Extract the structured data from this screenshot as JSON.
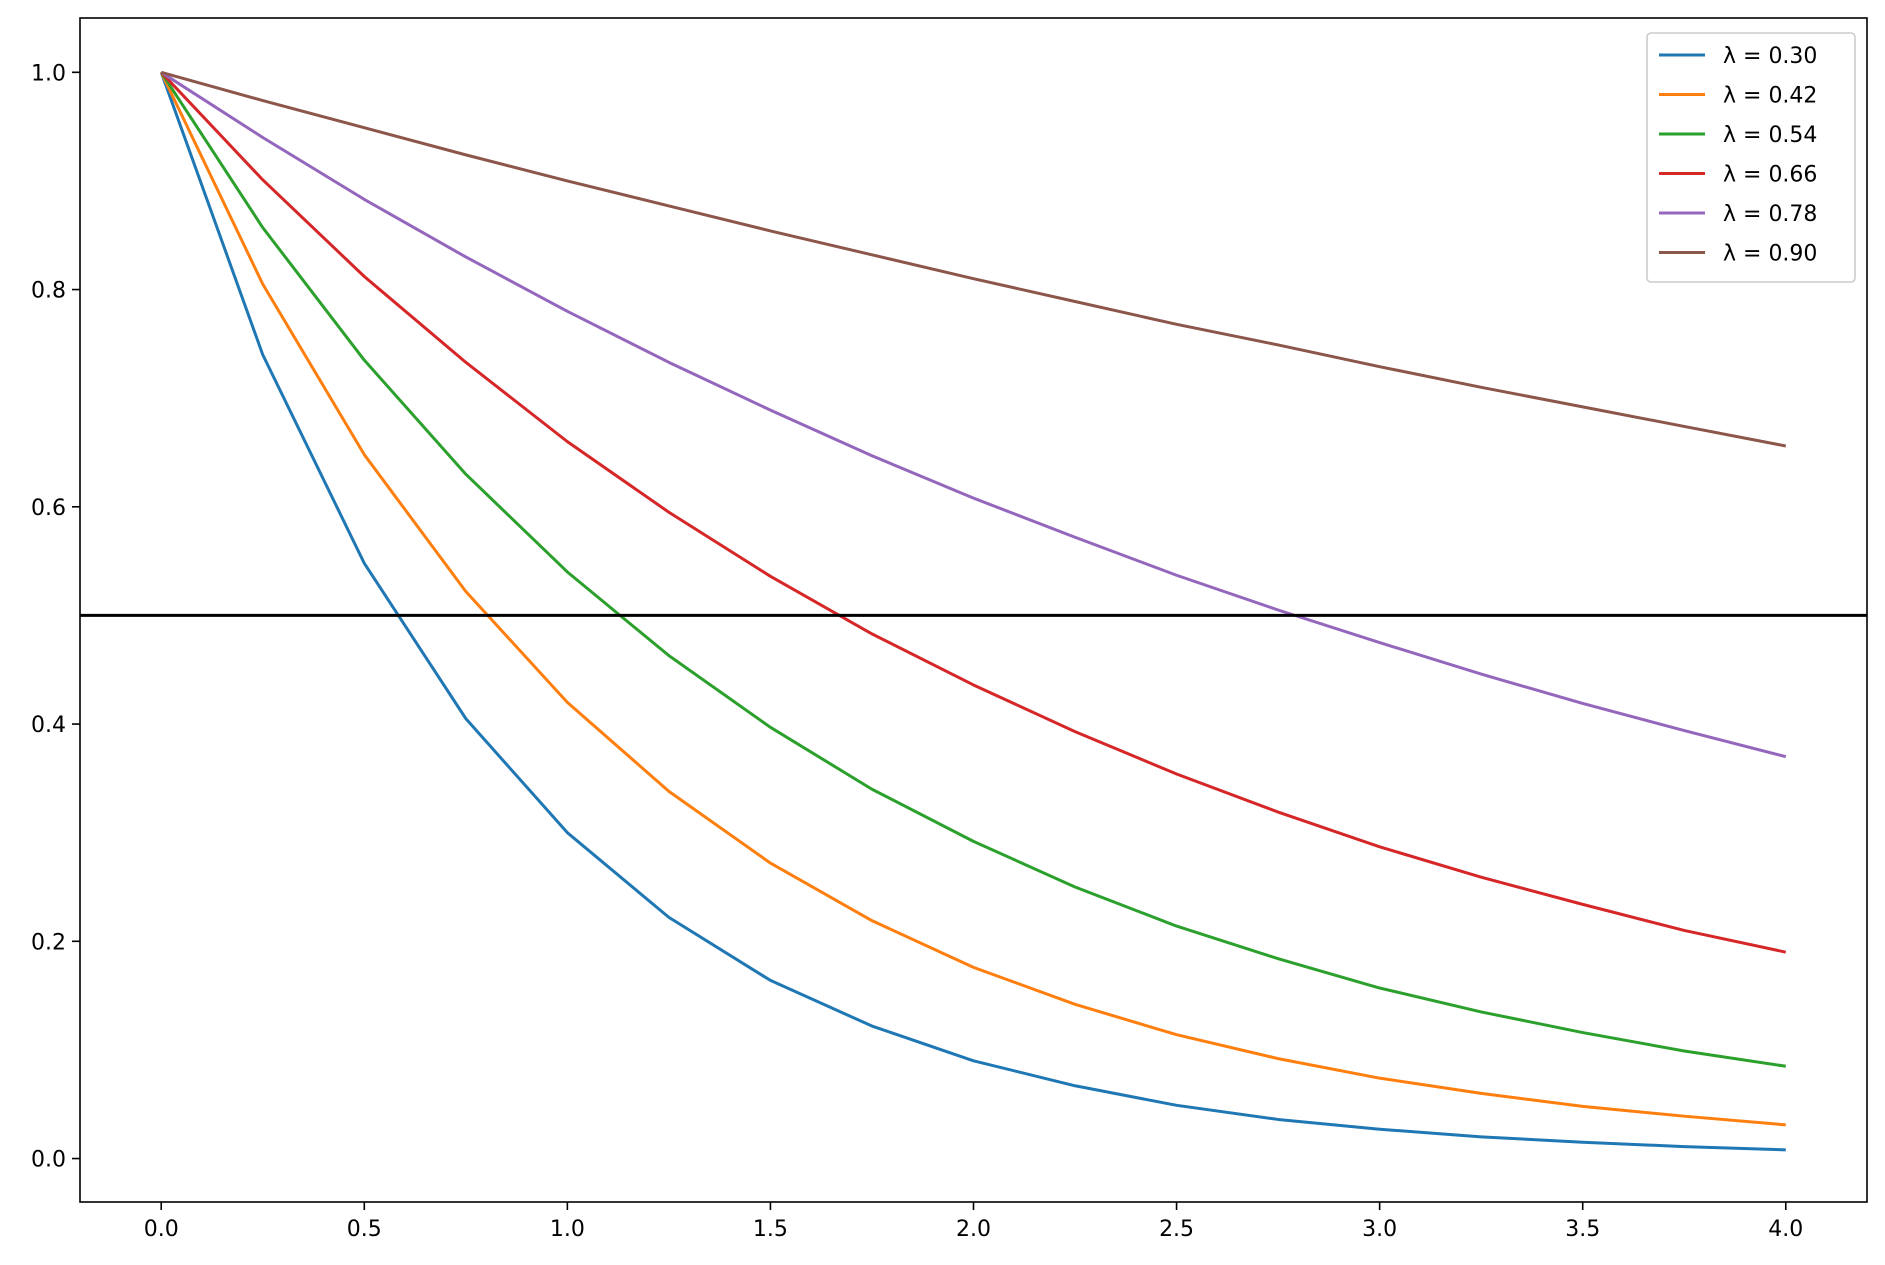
{
  "chart_data": {
    "type": "line",
    "title": "",
    "xlabel": "",
    "ylabel": "",
    "xlim": [
      -0.2,
      4.2
    ],
    "ylim": [
      -0.04,
      1.05
    ],
    "grid": false,
    "legend_placement": "upper right",
    "x_ticks": [
      {
        "value": 0.0,
        "label": "0.0"
      },
      {
        "value": 0.5,
        "label": "0.5"
      },
      {
        "value": 1.0,
        "label": "1.0"
      },
      {
        "value": 1.5,
        "label": "1.5"
      },
      {
        "value": 2.0,
        "label": "2.0"
      },
      {
        "value": 2.5,
        "label": "2.5"
      },
      {
        "value": 3.0,
        "label": "3.0"
      },
      {
        "value": 3.5,
        "label": "3.5"
      },
      {
        "value": 4.0,
        "label": "4.0"
      }
    ],
    "y_ticks": [
      {
        "value": 0.0,
        "label": "0.0"
      },
      {
        "value": 0.2,
        "label": "0.2"
      },
      {
        "value": 0.4,
        "label": "0.4"
      },
      {
        "value": 0.6,
        "label": "0.6"
      },
      {
        "value": 0.8,
        "label": "0.8"
      },
      {
        "value": 1.0,
        "label": "1.0"
      }
    ],
    "x": [
      0.0,
      0.25,
      0.5,
      0.75,
      1.0,
      1.25,
      1.5,
      1.75,
      2.0,
      2.25,
      2.5,
      2.75,
      3.0,
      3.25,
      3.5,
      3.75,
      4.0
    ],
    "series": [
      {
        "name": "λ = 0.30",
        "color": "#1f77b4",
        "values": [
          1.0,
          0.74,
          0.548,
          0.405,
          0.3,
          0.222,
          0.164,
          0.122,
          0.09,
          0.067,
          0.049,
          0.036,
          0.027,
          0.02,
          0.015,
          0.011,
          0.008
        ]
      },
      {
        "name": "λ = 0.42",
        "color": "#ff7f0e",
        "values": [
          1.0,
          0.805,
          0.648,
          0.522,
          0.42,
          0.338,
          0.272,
          0.219,
          0.176,
          0.142,
          0.114,
          0.092,
          0.074,
          0.06,
          0.048,
          0.039,
          0.031
        ]
      },
      {
        "name": "λ = 0.54",
        "color": "#2ca02c",
        "values": [
          1.0,
          0.857,
          0.735,
          0.63,
          0.54,
          0.463,
          0.397,
          0.34,
          0.292,
          0.25,
          0.214,
          0.184,
          0.157,
          0.135,
          0.116,
          0.099,
          0.085
        ]
      },
      {
        "name": "λ = 0.66",
        "color": "#d62728",
        "values": [
          1.0,
          0.901,
          0.812,
          0.733,
          0.66,
          0.595,
          0.536,
          0.483,
          0.436,
          0.393,
          0.354,
          0.319,
          0.287,
          0.259,
          0.234,
          0.21,
          0.19
        ]
      },
      {
        "name": "λ = 0.78",
        "color": "#9467bd",
        "values": [
          1.0,
          0.94,
          0.883,
          0.83,
          0.78,
          0.733,
          0.689,
          0.647,
          0.608,
          0.572,
          0.537,
          0.505,
          0.475,
          0.446,
          0.419,
          0.394,
          0.37
        ]
      },
      {
        "name": "λ = 0.90",
        "color": "#8c564b",
        "values": [
          1.0,
          0.974,
          0.949,
          0.924,
          0.9,
          0.877,
          0.854,
          0.832,
          0.81,
          0.789,
          0.768,
          0.749,
          0.729,
          0.71,
          0.692,
          0.674,
          0.656
        ]
      }
    ],
    "reference_line": {
      "y": 0.5,
      "color": "#000000"
    }
  }
}
